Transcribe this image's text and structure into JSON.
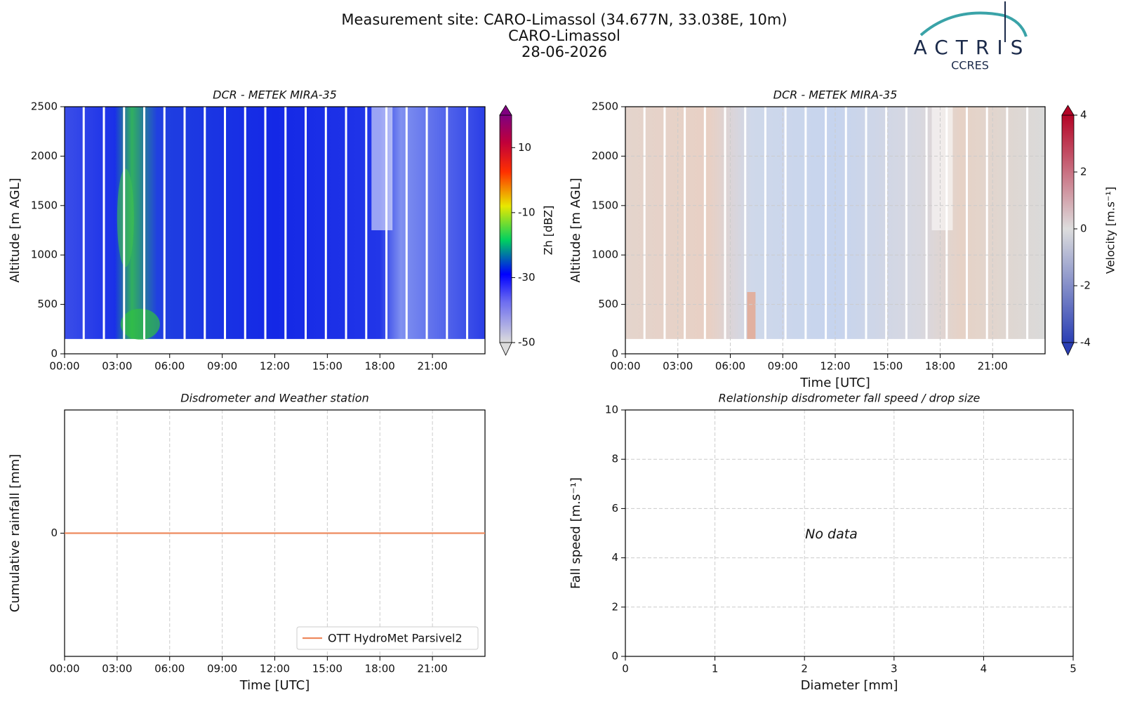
{
  "header": {
    "title_lines": [
      "Measurement site: CARO-Limassol (34.677N, 33.038E, 10m)",
      "CARO-Limassol",
      "28-06-2026"
    ],
    "logo_text": "ACTRIS",
    "logo_subtext": "CCRES"
  },
  "chart_data": [
    {
      "type": "heatmap",
      "title": "DCR - METEK MIRA-35",
      "ylabel": "Altitude [m AGL]",
      "xlim": [
        0,
        24
      ],
      "xticks": [
        {
          "value": 0,
          "label": "00:00"
        },
        {
          "value": 3,
          "label": "03:00"
        },
        {
          "value": 6,
          "label": "06:00"
        },
        {
          "value": 9,
          "label": "09:00"
        },
        {
          "value": 12,
          "label": "12:00"
        },
        {
          "value": 15,
          "label": "15:00"
        },
        {
          "value": 18,
          "label": "18:00"
        },
        {
          "value": 21,
          "label": "21:00"
        }
      ],
      "ylim": [
        0,
        2500
      ],
      "yticks": [
        0,
        500,
        1000,
        1500,
        2000,
        2500
      ],
      "grid": false,
      "colormap": "reflectivity",
      "colorbar": {
        "label": "Zh [dBZ]",
        "lim": [
          -50,
          20
        ],
        "ticks": [
          -50,
          -30,
          -10,
          10
        ]
      }
    },
    {
      "type": "heatmap",
      "title": "DCR - METEK MIRA-35",
      "ylabel": "Altitude [m AGL]",
      "xlabel": "Time [UTC]",
      "xlim": [
        0,
        24
      ],
      "xticks": [
        {
          "value": 0,
          "label": "00:00"
        },
        {
          "value": 3,
          "label": "03:00"
        },
        {
          "value": 6,
          "label": "06:00"
        },
        {
          "value": 9,
          "label": "09:00"
        },
        {
          "value": 12,
          "label": "12:00"
        },
        {
          "value": 15,
          "label": "15:00"
        },
        {
          "value": 18,
          "label": "18:00"
        },
        {
          "value": 21,
          "label": "21:00"
        }
      ],
      "ylim": [
        0,
        2500
      ],
      "yticks": [
        0,
        500,
        1000,
        1500,
        2000,
        2500
      ],
      "grid": true,
      "colormap": "velocity",
      "colorbar": {
        "label": "Velocity [m.s⁻¹]",
        "lim": [
          -4,
          4
        ],
        "ticks": [
          -4,
          -2,
          0,
          2,
          4
        ]
      }
    },
    {
      "type": "line",
      "title": "Disdrometer and Weather station",
      "ylabel": "Cumulative rainfall [mm]",
      "xlabel": "Time [UTC]",
      "xlim": [
        0,
        24
      ],
      "xticks": [
        {
          "value": 0,
          "label": "00:00"
        },
        {
          "value": 3,
          "label": "03:00"
        },
        {
          "value": 6,
          "label": "06:00"
        },
        {
          "value": 9,
          "label": "09:00"
        },
        {
          "value": 12,
          "label": "12:00"
        },
        {
          "value": 15,
          "label": "15:00"
        },
        {
          "value": 18,
          "label": "18:00"
        },
        {
          "value": 21,
          "label": "21:00"
        }
      ],
      "ylim": [
        -0.055,
        0.055
      ],
      "yticks": [
        0
      ],
      "grid": true,
      "legend": "lower right",
      "series": [
        {
          "name": "OTT HydroMet Parsivel2",
          "color": "#ee8a5e",
          "x": [
            0,
            24
          ],
          "values": [
            0,
            0
          ]
        }
      ]
    },
    {
      "type": "scatter",
      "title": "Relationship disdrometer fall speed / drop size",
      "ylabel": "Fall speed [m.s⁻¹]",
      "xlabel": "Diameter [mm]",
      "xlim": [
        0,
        5
      ],
      "xticks": [
        0,
        1,
        2,
        3,
        4,
        5
      ],
      "ylim": [
        0,
        10
      ],
      "yticks": [
        0,
        2,
        4,
        6,
        8,
        10
      ],
      "grid": true,
      "annotation": "No data",
      "x": [],
      "values": []
    }
  ]
}
